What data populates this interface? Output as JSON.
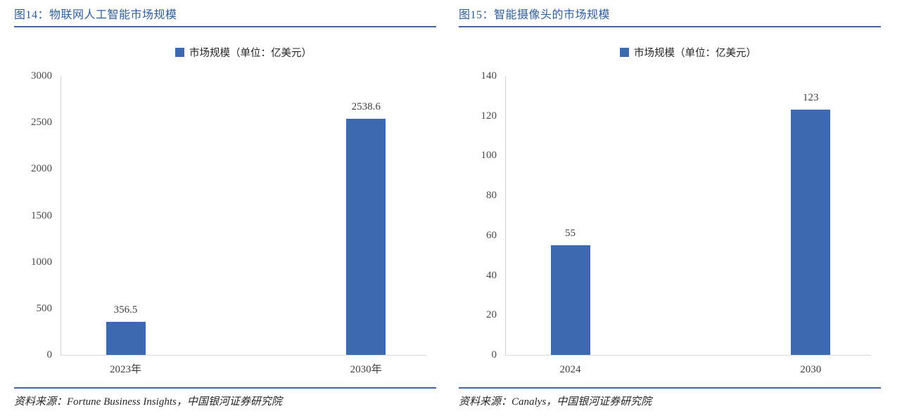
{
  "colors": {
    "bar": "#3C69AF",
    "title_text": "#2E5C99",
    "rule": "#44689E",
    "y_axis_line": "#D0D0D0",
    "x_axis_line": "#D9D9D9",
    "tick_text": "#4A4A4A",
    "label_text": "#3F3F3F",
    "source_text": "#262626"
  },
  "chart_data": [
    {
      "type": "bar",
      "title": "图14：物联网人工智能市场规模",
      "legend": [
        "市场规模（单位：亿美元）"
      ],
      "legend_position": "top-center",
      "categories": [
        "2023年",
        "2030年"
      ],
      "values": [
        356.5,
        2538.6
      ],
      "value_labels": [
        "356.5",
        "2538.6"
      ],
      "ylim": [
        0,
        3000
      ],
      "yticks": [
        0,
        500,
        1000,
        1500,
        2000,
        2500,
        3000
      ],
      "grid": false,
      "xlabel": "",
      "ylabel": "",
      "source": "资料来源：Fortune Business Insights，中国银河证券研究院"
    },
    {
      "type": "bar",
      "title": "图15：智能摄像头的市场规模",
      "legend": [
        "市场规模（单位：亿美元）"
      ],
      "legend_position": "top-center",
      "categories": [
        "2024",
        "2030"
      ],
      "values": [
        55,
        123
      ],
      "value_labels": [
        "55",
        "123"
      ],
      "ylim": [
        0,
        140
      ],
      "yticks": [
        0,
        20,
        40,
        60,
        80,
        100,
        120,
        140
      ],
      "grid": false,
      "xlabel": "",
      "ylabel": "",
      "source": "资料来源：Canalys，中国银河证券研究院"
    }
  ]
}
